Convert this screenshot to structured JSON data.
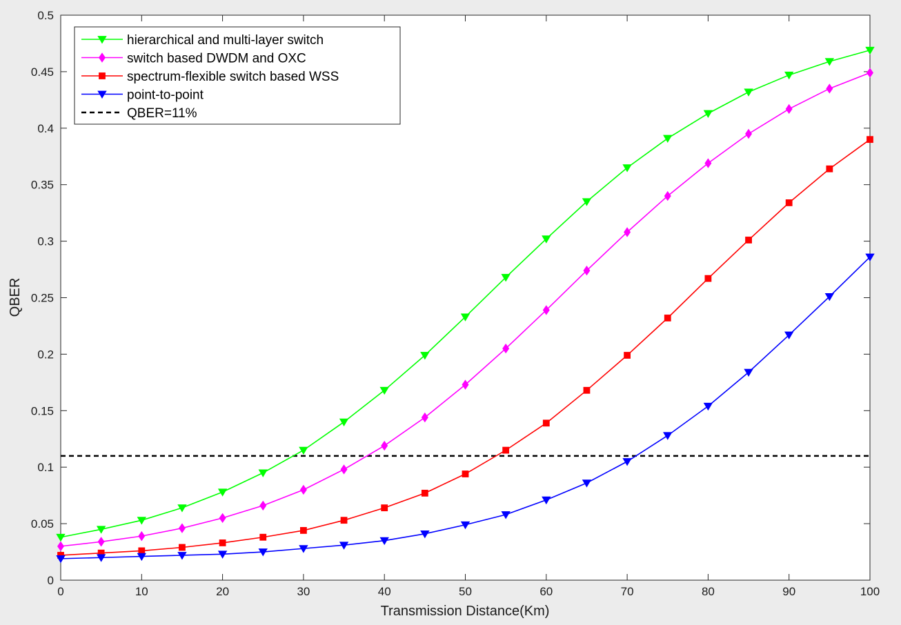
{
  "chart_data": {
    "type": "line",
    "title": "",
    "xlabel": "Transmission Distance(Km)",
    "ylabel": "QBER",
    "xlim": [
      0,
      100
    ],
    "ylim": [
      0,
      0.5
    ],
    "x_ticks": [
      0,
      10,
      20,
      30,
      40,
      50,
      60,
      70,
      80,
      90,
      100
    ],
    "y_ticks": [
      0,
      0.05,
      0.1,
      0.15,
      0.2,
      0.25,
      0.3,
      0.35,
      0.4,
      0.45,
      0.5
    ],
    "grid": false,
    "legend_position": "top-left",
    "x": [
      0,
      5,
      10,
      15,
      20,
      25,
      30,
      35,
      40,
      45,
      50,
      55,
      60,
      65,
      70,
      75,
      80,
      85,
      90,
      95,
      100
    ],
    "series": [
      {
        "name": "hierarchical and multi-layer switch",
        "color": "#00ff00",
        "marker": "triangle-down",
        "values": [
          0.038,
          0.045,
          0.053,
          0.064,
          0.078,
          0.095,
          0.115,
          0.14,
          0.168,
          0.199,
          0.233,
          0.268,
          0.302,
          0.335,
          0.365,
          0.391,
          0.413,
          0.432,
          0.447,
          0.459,
          0.469
        ]
      },
      {
        "name": "switch based DWDM and OXC",
        "color": "#ff00ff",
        "marker": "diamond",
        "values": [
          0.03,
          0.034,
          0.039,
          0.046,
          0.055,
          0.066,
          0.08,
          0.098,
          0.119,
          0.144,
          0.173,
          0.205,
          0.239,
          0.274,
          0.308,
          0.34,
          0.369,
          0.395,
          0.417,
          0.435,
          0.449
        ]
      },
      {
        "name": "spectrum-flexible switch based WSS",
        "color": "#ff0000",
        "marker": "square",
        "values": [
          0.022,
          0.024,
          0.026,
          0.029,
          0.033,
          0.038,
          0.044,
          0.053,
          0.064,
          0.077,
          0.094,
          0.115,
          0.139,
          0.168,
          0.199,
          0.232,
          0.267,
          0.301,
          0.334,
          0.364,
          0.39
        ]
      },
      {
        "name": "point-to-point",
        "color": "#0000ff",
        "marker": "triangle-down",
        "values": [
          0.019,
          0.02,
          0.021,
          0.022,
          0.023,
          0.025,
          0.028,
          0.031,
          0.035,
          0.041,
          0.049,
          0.058,
          0.071,
          0.086,
          0.105,
          0.128,
          0.154,
          0.184,
          0.217,
          0.251,
          0.286
        ]
      }
    ],
    "reference_line": {
      "name": "QBER=11%",
      "y": 0.11,
      "color": "#000000",
      "style": "dashed"
    }
  }
}
